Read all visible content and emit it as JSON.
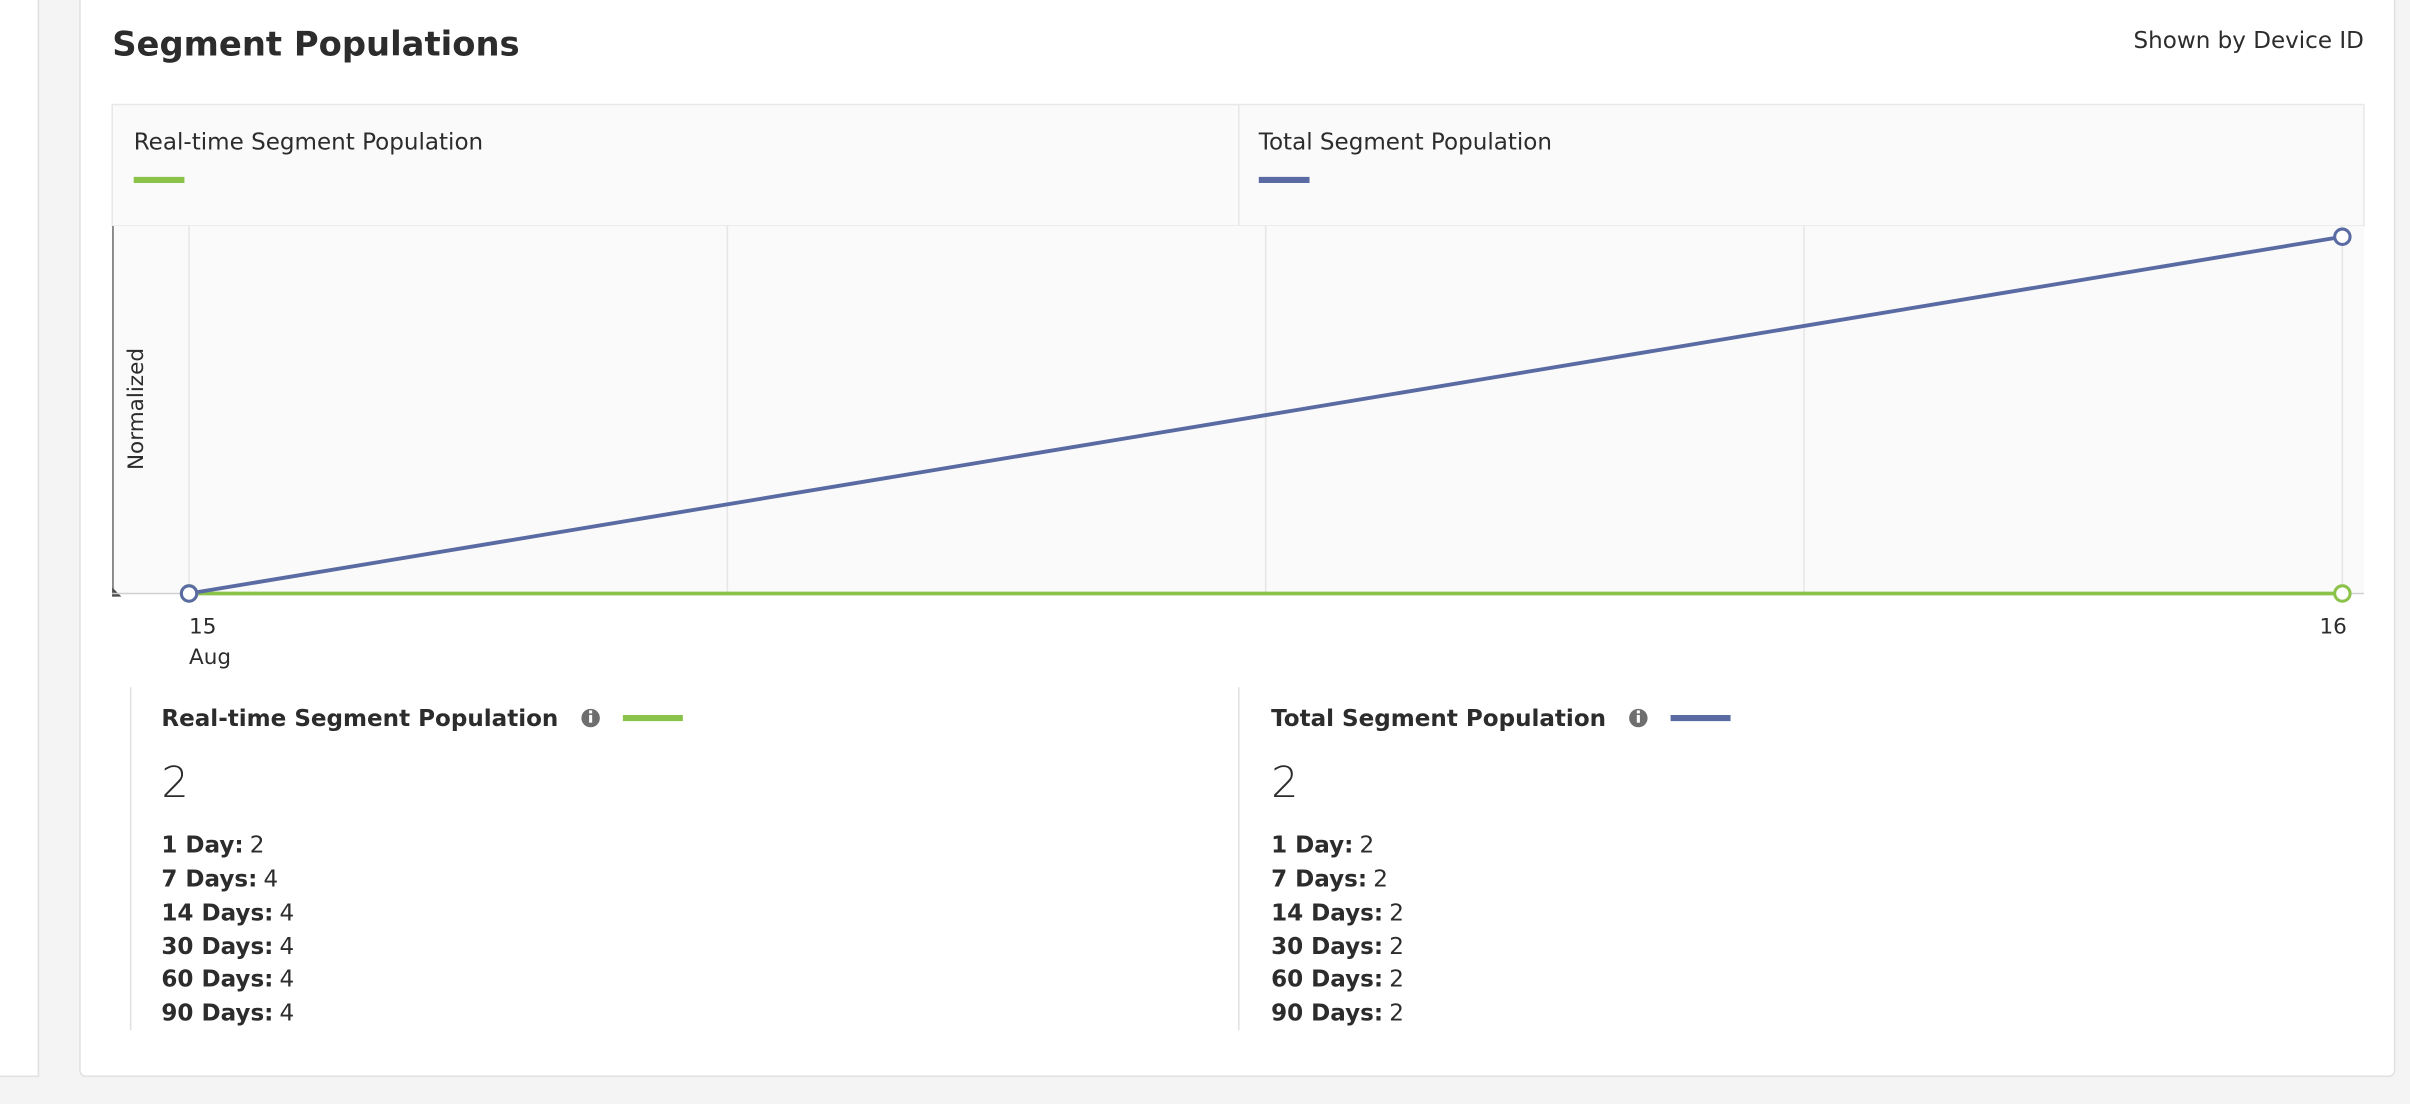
{
  "header": {
    "title": "Segment Populations",
    "note": "Shown by Device ID"
  },
  "chart_data": {
    "type": "line",
    "y_label": "Normalized",
    "categories": [
      "15",
      "16"
    ],
    "month_label": "Aug",
    "series": [
      {
        "name": "Real-time Segment Population",
        "color": "#8bc34a",
        "values": [
          0,
          0
        ]
      },
      {
        "name": "Total Segment Population",
        "color": "#5a6ba3",
        "values": [
          0,
          1
        ]
      }
    ],
    "ylim": [
      0,
      1.03
    ]
  },
  "summary": [
    {
      "title": "Real-time Segment Population",
      "total": 2,
      "stats": [
        {
          "label": "1 Day:",
          "value": 2
        },
        {
          "label": "7 Days:",
          "value": 4
        },
        {
          "label": "14 Days:",
          "value": 4
        },
        {
          "label": "30 Days:",
          "value": 4
        },
        {
          "label": "60 Days:",
          "value": 4
        },
        {
          "label": "90 Days:",
          "value": 4
        }
      ]
    },
    {
      "title": "Total Segment Population",
      "total": 2,
      "stats": [
        {
          "label": "1 Day:",
          "value": 2
        },
        {
          "label": "7 Days:",
          "value": 2
        },
        {
          "label": "14 Days:",
          "value": 2
        },
        {
          "label": "30 Days:",
          "value": 2
        },
        {
          "label": "60 Days:",
          "value": 2
        },
        {
          "label": "90 Days:",
          "value": 2
        }
      ]
    }
  ]
}
